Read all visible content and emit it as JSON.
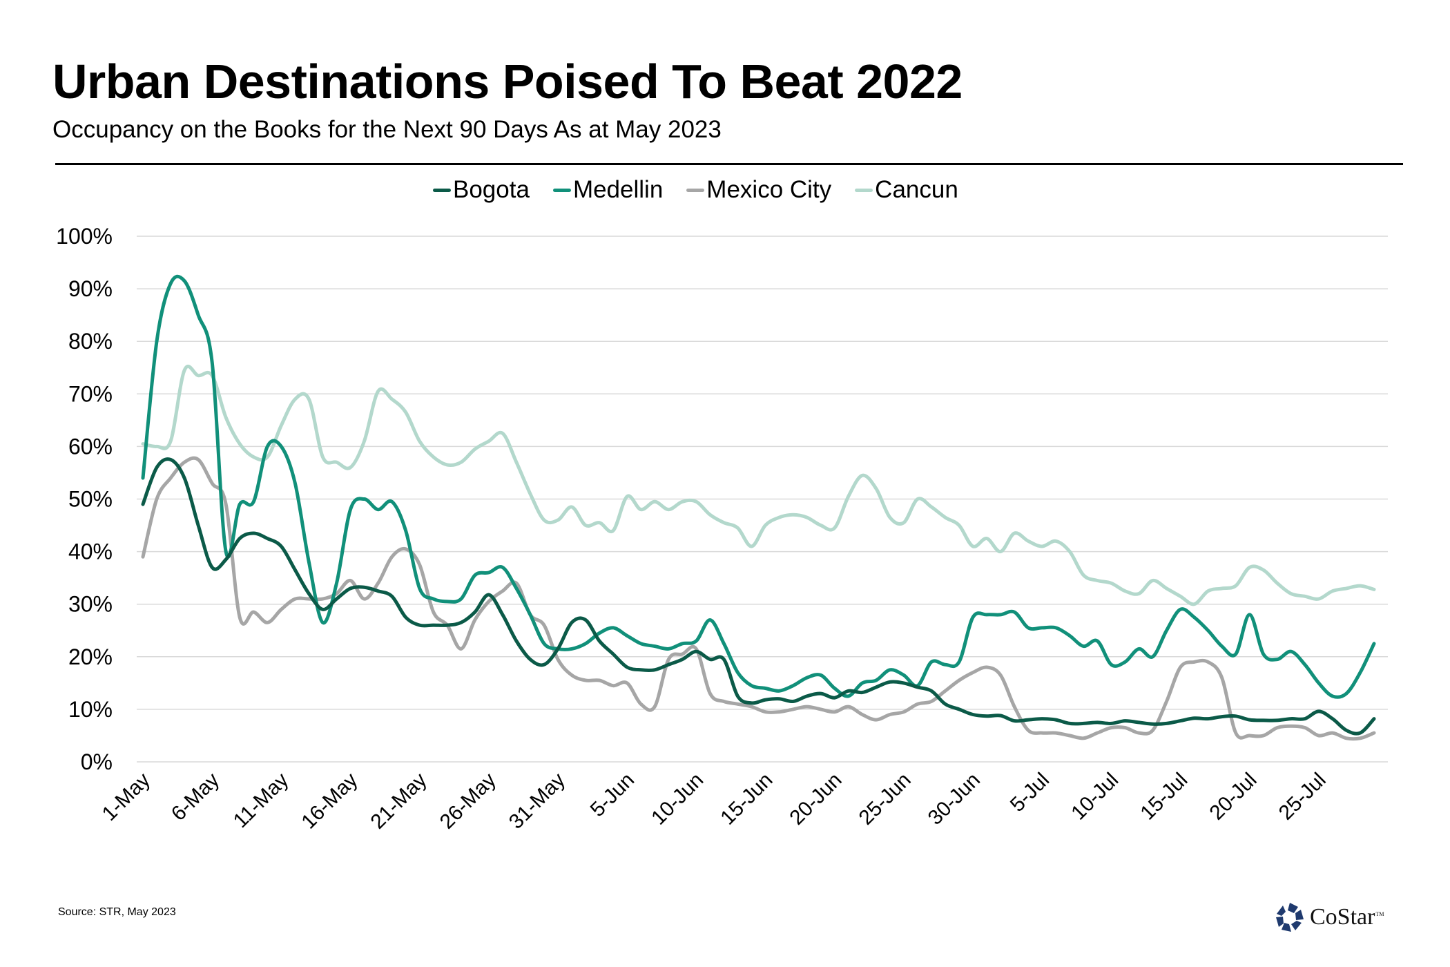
{
  "title": "Urban Destinations Poised To Beat 2022",
  "subtitle": "Occupancy on the Books for the Next 90 Days As at May 2023",
  "source": "Source: STR, May 2023",
  "logo": {
    "text": "CoStar",
    "tm": "TM",
    "icon": "costar-star-icon"
  },
  "chart_data": {
    "type": "line",
    "title": "Urban Destinations Poised To Beat 2022",
    "subtitle": "Occupancy on the Books for the Next 90 Days As at May 2023",
    "xlabel": "",
    "ylabel": "",
    "ylim": [
      0,
      100
    ],
    "yticks": [
      "0%",
      "10%",
      "20%",
      "30%",
      "40%",
      "50%",
      "60%",
      "70%",
      "80%",
      "90%",
      "100%"
    ],
    "ytick_values": [
      0,
      10,
      20,
      30,
      40,
      50,
      60,
      70,
      80,
      90,
      100
    ],
    "xticks": [
      "1-May",
      "6-May",
      "11-May",
      "16-May",
      "21-May",
      "26-May",
      "31-May",
      "5-Jun",
      "10-Jun",
      "15-Jun",
      "20-Jun",
      "25-Jun",
      "30-Jun",
      "5-Jul",
      "10-Jul",
      "15-Jul",
      "20-Jul",
      "25-Jul"
    ],
    "xtick_index": [
      0,
      5,
      10,
      15,
      20,
      25,
      30,
      35,
      40,
      45,
      50,
      55,
      60,
      65,
      70,
      75,
      80,
      85
    ],
    "x_start": "1-May",
    "x_count": 90,
    "grid": true,
    "legend_position": "top-center",
    "series": [
      {
        "name": "Bogota",
        "color": "#0b5a48",
        "values": [
          49,
          56,
          57.5,
          54,
          45,
          37,
          38.5,
          42.5,
          43.5,
          42.5,
          41,
          36.5,
          32,
          29,
          31,
          33,
          33.2,
          32.5,
          31.5,
          27.5,
          26,
          26,
          26,
          26.5,
          28.5,
          31.8,
          28,
          23,
          19.5,
          18.5,
          21.5,
          26.5,
          27,
          23,
          20.5,
          18,
          17.5,
          17.5,
          18.5,
          19.5,
          21,
          19.5,
          19.5,
          12.5,
          11.2,
          11.8,
          12,
          11.5,
          12.5,
          13,
          12.2,
          13.5,
          13.2,
          14.2,
          15.2,
          15,
          14.2,
          13.5,
          11,
          10,
          9,
          8.7,
          8.8,
          7.8,
          8,
          8.2,
          8,
          7.3,
          7.3,
          7.5,
          7.3,
          7.8,
          7.5,
          7.2,
          7.3,
          7.8,
          8.3,
          8.2,
          8.6,
          8.7,
          8,
          7.9,
          7.9,
          8.2,
          8.2,
          9.6,
          8.2,
          6,
          5.5,
          8.2
        ]
      },
      {
        "name": "Medellin",
        "color": "#11907a",
        "values": [
          54,
          80,
          91,
          91.5,
          85,
          76,
          40,
          49,
          49.5,
          60,
          60,
          53,
          38,
          26.5,
          34,
          48,
          50,
          48,
          49.5,
          44,
          33,
          31,
          30.5,
          31,
          35.5,
          36,
          37,
          33,
          28,
          22.5,
          21.5,
          21.5,
          22.5,
          24.5,
          25.5,
          24,
          22.5,
          22,
          21.5,
          22.5,
          23,
          27,
          22.5,
          17,
          14.5,
          14,
          13.5,
          14.5,
          16,
          16.5,
          14,
          12.5,
          15,
          15.5,
          17.5,
          16.5,
          14.5,
          19,
          18.5,
          19,
          27.5,
          28,
          28,
          28.5,
          25.5,
          25.5,
          25.5,
          24,
          22,
          23,
          18.5,
          19,
          21.5,
          20,
          25,
          29,
          27.5,
          25,
          22,
          20.5,
          28,
          20.5,
          19.5,
          21,
          18.5,
          15,
          12.5,
          13,
          17,
          22.5
        ]
      },
      {
        "name": "Mexico City",
        "color": "#a6a6a6",
        "values": [
          39,
          50,
          54,
          57,
          57.5,
          53,
          49,
          27.5,
          28.5,
          26.5,
          29,
          31,
          31,
          31,
          32,
          34.5,
          31,
          34,
          39,
          40.5,
          37.5,
          28.5,
          26,
          21.5,
          27,
          30.5,
          32.5,
          34,
          28,
          26,
          19.5,
          16.5,
          15.5,
          15.5,
          14.5,
          15,
          11,
          10.5,
          19.5,
          20.5,
          21.5,
          13,
          11.5,
          11,
          10.5,
          9.5,
          9.5,
          10,
          10.5,
          10,
          9.5,
          10.5,
          9,
          8,
          9,
          9.5,
          11,
          11.5,
          13.5,
          15.5,
          17,
          18,
          16.5,
          10.5,
          6,
          5.5,
          5.5,
          5,
          4.5,
          5.5,
          6.5,
          6.5,
          5.5,
          6,
          11.5,
          18,
          19,
          19,
          16,
          5.5,
          5,
          5,
          6.5,
          6.8,
          6.5,
          5,
          5.5,
          4.5,
          4.5,
          5.5
        ]
      },
      {
        "name": "Cancun",
        "color": "#b3d8cc",
        "values": [
          60.5,
          60,
          61,
          74.5,
          73.5,
          73.5,
          65.5,
          60.5,
          58,
          58,
          64,
          69,
          69,
          58,
          57,
          56,
          61,
          70.5,
          69,
          66.5,
          61,
          58,
          56.5,
          57,
          59.5,
          61,
          62.5,
          57,
          51,
          46,
          46,
          48.5,
          45,
          45.5,
          44,
          50.5,
          48,
          49.5,
          48,
          49.5,
          49.5,
          47,
          45.5,
          44.5,
          41,
          45,
          46.5,
          47,
          46.5,
          45,
          44.5,
          50.5,
          54.5,
          52,
          46.5,
          45.5,
          50,
          48.5,
          46.5,
          45,
          41,
          42.5,
          40,
          43.5,
          42,
          41,
          42,
          40,
          35.5,
          34.5,
          34,
          32.5,
          32,
          34.5,
          33,
          31.5,
          30,
          32.5,
          33,
          33.5,
          37,
          36.5,
          34,
          32,
          31.5,
          31,
          32.5,
          33,
          33.5,
          32.8
        ]
      }
    ]
  }
}
